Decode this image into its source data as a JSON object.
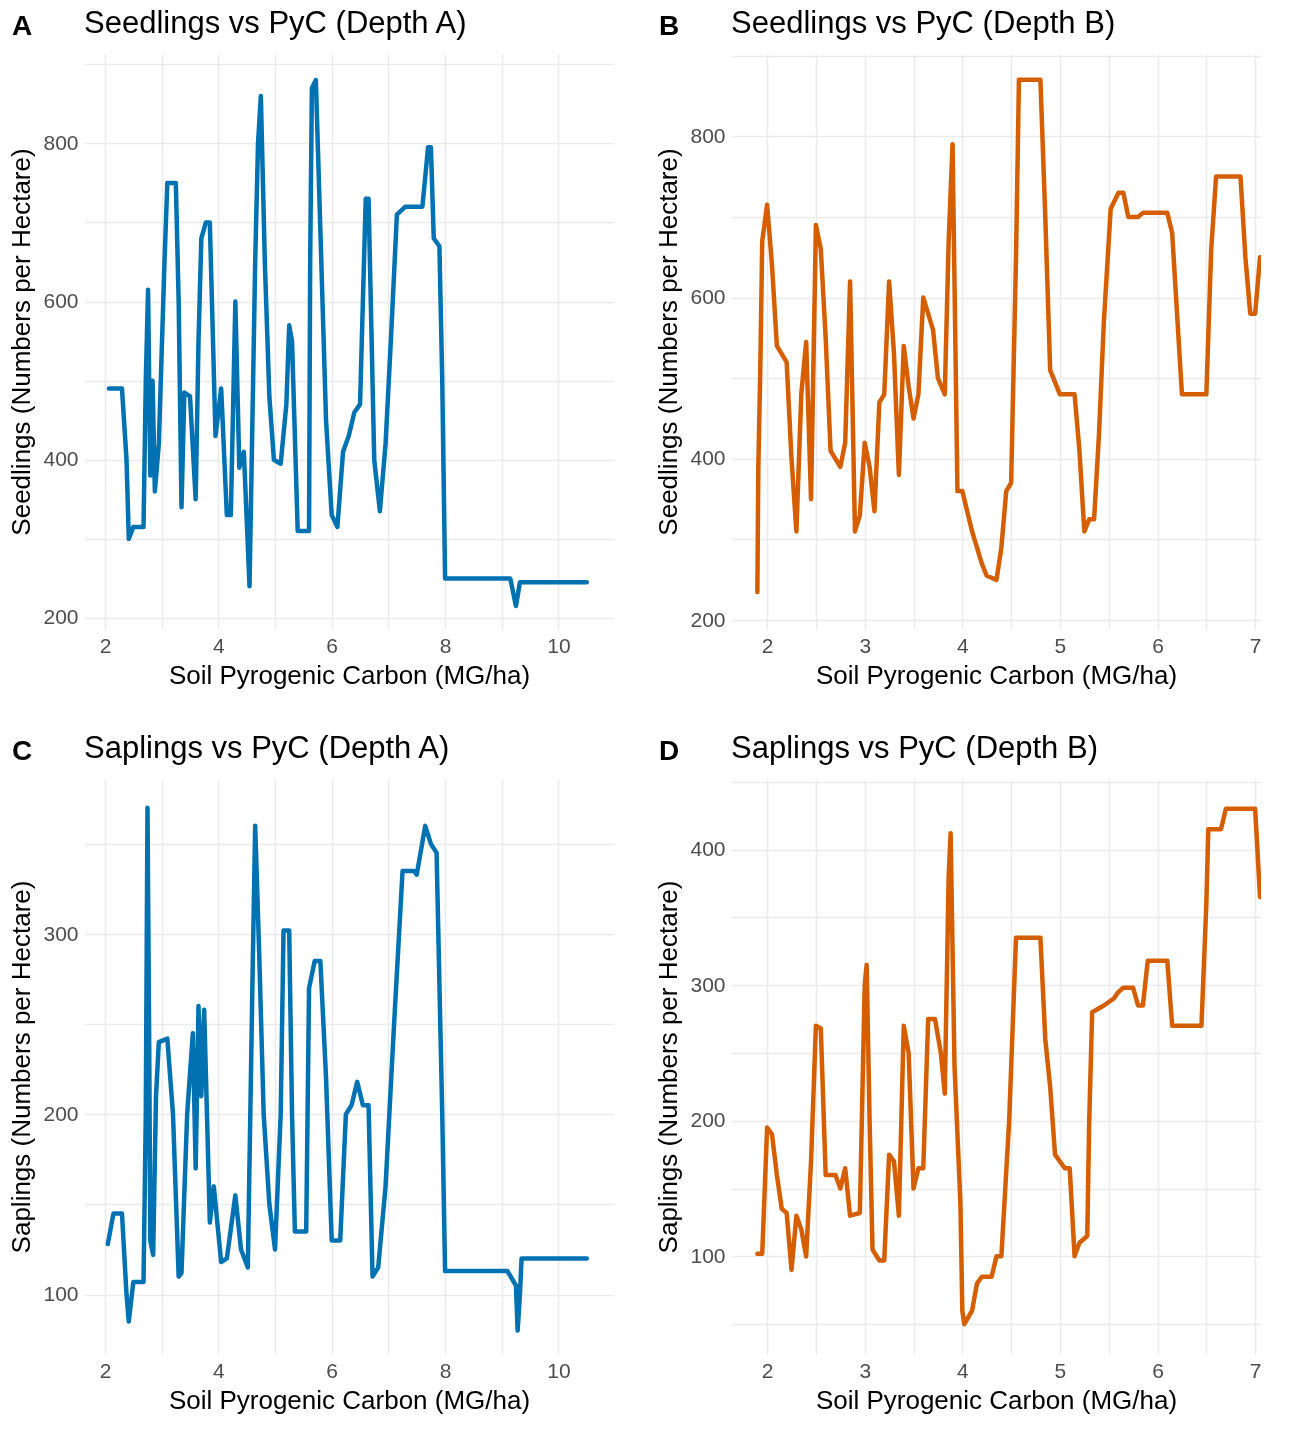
{
  "chart_data": [
    {
      "type": "line",
      "title": "Seedlings vs PyC (Depth A)",
      "xlabel": "Soil Pyrogenic Carbon (MG/ha)",
      "ylabel": "Seedlings (Numbers per Hectare)",
      "annotations": [
        "A"
      ],
      "grid": true,
      "line_style": "solid",
      "color": "#0072b2",
      "xlim": [
        1.63,
        10.98
      ],
      "ylim": [
        186,
        913
      ],
      "xticks": [
        2,
        {
          "value": 3,
          "label": null
        },
        4,
        {
          "value": 5,
          "label": null
        },
        6,
        {
          "value": 7,
          "label": null
        },
        8,
        {
          "value": 9,
          "label": null
        },
        10
      ],
      "yticks": [
        200,
        {
          "value": 300,
          "label": null
        },
        400,
        {
          "value": 500,
          "label": null
        },
        600,
        {
          "value": 700,
          "label": null
        },
        800,
        {
          "value": 900,
          "label": null
        }
      ],
      "x": [
        2.07,
        2.3,
        2.38,
        2.42,
        2.5,
        2.68,
        2.72,
        2.76,
        2.8,
        2.84,
        2.88,
        2.95,
        3.05,
        3.1,
        3.25,
        3.3,
        3.35,
        3.4,
        3.5,
        3.6,
        3.65,
        3.7,
        3.78,
        3.85,
        3.95,
        4.05,
        4.15,
        4.22,
        4.3,
        4.37,
        4.45,
        4.55,
        4.65,
        4.7,
        4.75,
        4.82,
        4.9,
        4.98,
        5.1,
        5.2,
        5.25,
        5.3,
        5.4,
        5.6,
        5.62,
        5.65,
        5.72,
        5.8,
        5.9,
        6.0,
        6.1,
        6.2,
        6.3,
        6.4,
        6.5,
        6.55,
        6.6,
        6.65,
        6.75,
        6.85,
        6.95,
        7.05,
        7.15,
        7.3,
        7.6,
        7.7,
        7.75,
        7.8,
        7.9,
        7.95,
        8.0,
        9.15,
        9.25,
        9.32,
        10.5
      ],
      "values": [
        490,
        490,
        400,
        300,
        315,
        315,
        500,
        615,
        380,
        500,
        360,
        420,
        650,
        750,
        750,
        600,
        340,
        485,
        480,
        350,
        550,
        680,
        700,
        700,
        430,
        490,
        330,
        330,
        600,
        390,
        410,
        240,
        650,
        800,
        860,
        650,
        480,
        400,
        395,
        470,
        570,
        550,
        310,
        310,
        650,
        870,
        880,
        690,
        450,
        330,
        315,
        410,
        430,
        460,
        470,
        600,
        730,
        730,
        400,
        335,
        420,
        560,
        710,
        720,
        720,
        795,
        795,
        680,
        670,
        500,
        250,
        250,
        215,
        245,
        245
      ]
    },
    {
      "type": "line",
      "title": "Seedlings vs PyC (Depth B)",
      "xlabel": "Soil Pyrogenic Carbon (MG/ha)",
      "ylabel": "Seedlings (Numbers per Hectare)",
      "annotations": [
        "B"
      ],
      "grid": true,
      "line_style": "solid",
      "color": "#d55e00",
      "xlim": [
        1.63,
        7.06
      ],
      "ylim": [
        189,
        902
      ],
      "xticks": [
        2,
        {
          "value": 2.5,
          "label": null
        },
        3,
        {
          "value": 3.5,
          "label": null
        },
        4,
        {
          "value": 4.5,
          "label": null
        },
        5,
        {
          "value": 5.5,
          "label": null
        },
        6,
        {
          "value": 6.5,
          "label": null
        },
        7
      ],
      "yticks": [
        200,
        {
          "value": 300,
          "label": null
        },
        400,
        {
          "value": 500,
          "label": null
        },
        600,
        {
          "value": 700,
          "label": null
        },
        800,
        {
          "value": 900,
          "label": null
        }
      ],
      "x": [
        1.9,
        1.91,
        1.93,
        1.95,
        2.0,
        2.05,
        2.1,
        2.2,
        2.25,
        2.3,
        2.35,
        2.4,
        2.45,
        2.5,
        2.55,
        2.6,
        2.65,
        2.75,
        2.8,
        2.85,
        2.9,
        2.95,
        3.0,
        3.05,
        3.1,
        3.15,
        3.2,
        3.25,
        3.3,
        3.35,
        3.4,
        3.45,
        3.5,
        3.55,
        3.6,
        3.7,
        3.75,
        3.82,
        3.86,
        3.9,
        3.95,
        4.0,
        4.1,
        4.2,
        4.25,
        4.35,
        4.4,
        4.45,
        4.5,
        4.55,
        4.58,
        4.8,
        4.85,
        4.9,
        5.0,
        5.15,
        5.2,
        5.25,
        5.3,
        5.35,
        5.4,
        5.45,
        5.52,
        5.6,
        5.65,
        5.7,
        5.8,
        5.85,
        6.1,
        6.15,
        6.2,
        6.25,
        6.5,
        6.55,
        6.6,
        6.85,
        6.9,
        6.95,
        7.0,
        7.05
      ],
      "values": [
        235,
        390,
        510,
        670,
        715,
        640,
        540,
        520,
        400,
        310,
        480,
        545,
        350,
        690,
        660,
        550,
        410,
        390,
        420,
        620,
        310,
        330,
        420,
        390,
        335,
        470,
        480,
        620,
        530,
        380,
        540,
        490,
        450,
        480,
        600,
        560,
        500,
        480,
        670,
        790,
        360,
        360,
        310,
        270,
        255,
        250,
        290,
        360,
        370,
        650,
        870,
        870,
        700,
        510,
        480,
        480,
        410,
        310,
        325,
        325,
        430,
        570,
        710,
        730,
        730,
        700,
        700,
        705,
        705,
        680,
        580,
        480,
        480,
        660,
        750,
        750,
        650,
        580,
        580,
        650
      ]
    },
    {
      "type": "line",
      "title": "Saplings vs PyC (Depth A)",
      "xlabel": "Soil Pyrogenic Carbon (MG/ha)",
      "ylabel": "Saplings (Numbers per Hectare)",
      "annotations": [
        "C"
      ],
      "grid": true,
      "line_style": "solid",
      "color": "#0072b2",
      "xlim": [
        1.63,
        10.98
      ],
      "ylim": [
        67,
        386
      ],
      "xticks": [
        2,
        {
          "value": 3,
          "label": null
        },
        4,
        {
          "value": 5,
          "label": null
        },
        6,
        {
          "value": 7,
          "label": null
        },
        8,
        {
          "value": 9,
          "label": null
        },
        10
      ],
      "yticks": [
        100,
        {
          "value": 150,
          "label": null
        },
        200,
        {
          "value": 250,
          "label": null
        },
        300,
        {
          "value": 350,
          "label": null
        }
      ],
      "x": [
        2.05,
        2.15,
        2.3,
        2.38,
        2.42,
        2.5,
        2.68,
        2.72,
        2.75,
        2.78,
        2.8,
        2.85,
        2.9,
        2.95,
        3.1,
        3.2,
        3.3,
        3.35,
        3.45,
        3.55,
        3.6,
        3.65,
        3.7,
        3.75,
        3.85,
        3.92,
        4.05,
        4.15,
        4.3,
        4.4,
        4.52,
        4.6,
        4.65,
        4.72,
        4.8,
        4.9,
        5.0,
        5.1,
        5.15,
        5.25,
        5.3,
        5.35,
        5.55,
        5.6,
        5.7,
        5.8,
        5.9,
        6.0,
        6.15,
        6.25,
        6.35,
        6.45,
        6.55,
        6.65,
        6.72,
        6.82,
        6.95,
        7.1,
        7.25,
        7.45,
        7.5,
        7.65,
        7.75,
        7.85,
        7.95,
        8.0,
        9.1,
        9.25,
        9.28,
        9.32,
        9.35,
        10.5
      ],
      "values": [
        128,
        145,
        145,
        100,
        85,
        107,
        107,
        200,
        370,
        240,
        130,
        122,
        210,
        240,
        242,
        200,
        110,
        112,
        200,
        245,
        170,
        260,
        210,
        258,
        140,
        160,
        118,
        120,
        155,
        125,
        115,
        270,
        360,
        290,
        200,
        150,
        125,
        200,
        302,
        302,
        200,
        135,
        135,
        270,
        285,
        285,
        220,
        130,
        130,
        200,
        205,
        218,
        205,
        205,
        110,
        115,
        160,
        250,
        335,
        335,
        333,
        360,
        350,
        345,
        200,
        113,
        113,
        105,
        80,
        100,
        120,
        120
      ]
    },
    {
      "type": "line",
      "title": "Saplings vs PyC (Depth B)",
      "xlabel": "Soil Pyrogenic Carbon (MG/ha)",
      "ylabel": "Saplings (Numbers per Hectare)",
      "annotations": [
        "D"
      ],
      "grid": true,
      "line_style": "solid",
      "color": "#d55e00",
      "xlim": [
        1.63,
        7.06
      ],
      "ylim": [
        28,
        452
      ],
      "xticks": [
        2,
        {
          "value": 2.5,
          "label": null
        },
        3,
        {
          "value": 3.5,
          "label": null
        },
        4,
        {
          "value": 4.5,
          "label": null
        },
        5,
        {
          "value": 5.5,
          "label": null
        },
        6,
        {
          "value": 6.5,
          "label": null
        },
        7
      ],
      "yticks": [
        {
          "value": 50,
          "label": null
        },
        100,
        {
          "value": 150,
          "label": null
        },
        200,
        {
          "value": 250,
          "label": null
        },
        300,
        {
          "value": 350,
          "label": null
        },
        400,
        {
          "value": 450,
          "label": null
        }
      ],
      "x": [
        1.9,
        1.95,
        2.0,
        2.05,
        2.1,
        2.15,
        2.2,
        2.25,
        2.3,
        2.35,
        2.4,
        2.45,
        2.5,
        2.55,
        2.6,
        2.7,
        2.75,
        2.8,
        2.85,
        2.95,
        3.0,
        3.02,
        3.05,
        3.08,
        3.15,
        3.2,
        3.25,
        3.3,
        3.35,
        3.4,
        3.45,
        3.5,
        3.55,
        3.6,
        3.65,
        3.72,
        3.78,
        3.82,
        3.86,
        3.88,
        3.92,
        3.98,
        4.0,
        4.02,
        4.1,
        4.15,
        4.2,
        4.3,
        4.35,
        4.4,
        4.48,
        4.55,
        4.8,
        4.85,
        4.9,
        4.95,
        5.05,
        5.1,
        5.15,
        5.2,
        5.28,
        5.3,
        5.33,
        5.45,
        5.55,
        5.6,
        5.65,
        5.75,
        5.8,
        5.85,
        5.9,
        6.1,
        6.15,
        6.45,
        6.5,
        6.52,
        6.65,
        6.7,
        7.0,
        7.05
      ],
      "values": [
        102,
        102,
        195,
        190,
        160,
        135,
        132,
        90,
        130,
        120,
        100,
        170,
        270,
        268,
        160,
        160,
        150,
        165,
        130,
        132,
        300,
        315,
        200,
        105,
        97,
        97,
        175,
        170,
        130,
        270,
        250,
        150,
        165,
        165,
        275,
        275,
        250,
        220,
        380,
        412,
        240,
        140,
        60,
        50,
        60,
        80,
        85,
        85,
        100,
        100,
        200,
        335,
        335,
        260,
        225,
        175,
        165,
        165,
        100,
        110,
        115,
        200,
        280,
        285,
        290,
        295,
        298,
        298,
        285,
        285,
        318,
        318,
        270,
        270,
        360,
        415,
        415,
        430,
        430,
        365
      ]
    }
  ]
}
